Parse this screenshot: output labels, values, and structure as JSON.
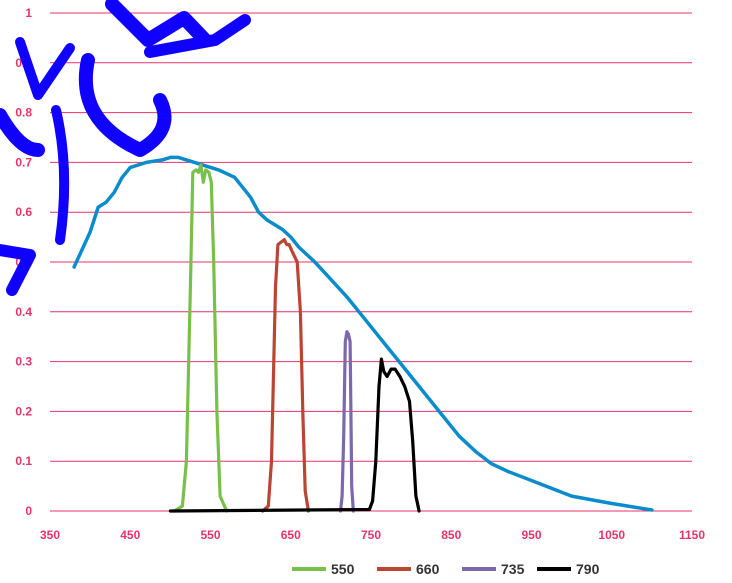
{
  "chart_data": {
    "type": "line",
    "title": "",
    "xlabel": "",
    "ylabel": "",
    "xlim": [
      350,
      1150
    ],
    "ylim": [
      0,
      1
    ],
    "x_ticks": [
      "350",
      "450",
      "550",
      "650",
      "750",
      "850",
      "950",
      "1050",
      "1150"
    ],
    "y_ticks": [
      "0",
      "0.1",
      "0.2",
      "0.3",
      "0.4",
      "0.5",
      "0.6",
      "0.7",
      "0.8",
      "0.9",
      "1"
    ],
    "grid": "horizontal",
    "legend_position": "bottom",
    "series": [
      {
        "name": "",
        "color": "#0a8ccc",
        "in_legend": false,
        "points": [
          [
            380,
            0.49
          ],
          [
            400,
            0.56
          ],
          [
            410,
            0.61
          ],
          [
            420,
            0.62
          ],
          [
            430,
            0.64
          ],
          [
            440,
            0.67
          ],
          [
            450,
            0.69
          ],
          [
            460,
            0.695
          ],
          [
            470,
            0.7
          ],
          [
            490,
            0.705
          ],
          [
            500,
            0.71
          ],
          [
            510,
            0.71
          ],
          [
            520,
            0.705
          ],
          [
            530,
            0.7
          ],
          [
            540,
            0.695
          ],
          [
            560,
            0.685
          ],
          [
            580,
            0.67
          ],
          [
            600,
            0.63
          ],
          [
            610,
            0.6
          ],
          [
            620,
            0.585
          ],
          [
            640,
            0.565
          ],
          [
            650,
            0.55
          ],
          [
            660,
            0.53
          ],
          [
            680,
            0.5
          ],
          [
            700,
            0.465
          ],
          [
            720,
            0.43
          ],
          [
            740,
            0.39
          ],
          [
            760,
            0.35
          ],
          [
            780,
            0.31
          ],
          [
            800,
            0.27
          ],
          [
            820,
            0.23
          ],
          [
            840,
            0.19
          ],
          [
            860,
            0.15
          ],
          [
            880,
            0.12
          ],
          [
            900,
            0.095
          ],
          [
            920,
            0.08
          ],
          [
            960,
            0.055
          ],
          [
            1000,
            0.03
          ],
          [
            1050,
            0.015
          ],
          [
            1100,
            0.002
          ]
        ]
      },
      {
        "name": "550",
        "color": "#78c04a",
        "in_legend": true,
        "points": [
          [
            505,
            0.0
          ],
          [
            515,
            0.01
          ],
          [
            520,
            0.1
          ],
          [
            525,
            0.45
          ],
          [
            528,
            0.68
          ],
          [
            532,
            0.685
          ],
          [
            535,
            0.68
          ],
          [
            538,
            0.695
          ],
          [
            541,
            0.66
          ],
          [
            544,
            0.685
          ],
          [
            548,
            0.68
          ],
          [
            551,
            0.66
          ],
          [
            554,
            0.5
          ],
          [
            558,
            0.2
          ],
          [
            562,
            0.03
          ],
          [
            570,
            0.0
          ]
        ]
      },
      {
        "name": "660",
        "color": "#bb4533",
        "in_legend": true,
        "points": [
          [
            615,
            0.0
          ],
          [
            622,
            0.01
          ],
          [
            626,
            0.1
          ],
          [
            631,
            0.45
          ],
          [
            634,
            0.535
          ],
          [
            638,
            0.54
          ],
          [
            642,
            0.545
          ],
          [
            645,
            0.535
          ],
          [
            648,
            0.535
          ],
          [
            652,
            0.52
          ],
          [
            658,
            0.5
          ],
          [
            662,
            0.4
          ],
          [
            665,
            0.2
          ],
          [
            668,
            0.04
          ],
          [
            672,
            0.0
          ]
        ]
      },
      {
        "name": "735",
        "color": "#7b68ad",
        "in_legend": true,
        "points": [
          [
            712,
            0.0
          ],
          [
            714,
            0.03
          ],
          [
            716,
            0.15
          ],
          [
            718,
            0.34
          ],
          [
            720,
            0.36
          ],
          [
            722,
            0.355
          ],
          [
            724,
            0.34
          ],
          [
            725,
            0.2
          ],
          [
            726,
            0.05
          ],
          [
            728,
            0.0
          ]
        ]
      },
      {
        "name": "790",
        "color": "#000000",
        "in_legend": true,
        "points": [
          [
            500,
            0.0
          ],
          [
            748,
            0.003
          ],
          [
            752,
            0.02
          ],
          [
            756,
            0.1
          ],
          [
            760,
            0.25
          ],
          [
            763,
            0.305
          ],
          [
            766,
            0.28
          ],
          [
            770,
            0.27
          ],
          [
            775,
            0.285
          ],
          [
            780,
            0.285
          ],
          [
            786,
            0.27
          ],
          [
            792,
            0.25
          ],
          [
            798,
            0.22
          ],
          [
            802,
            0.14
          ],
          [
            806,
            0.03
          ],
          [
            810,
            0.0
          ]
        ]
      }
    ]
  }
}
